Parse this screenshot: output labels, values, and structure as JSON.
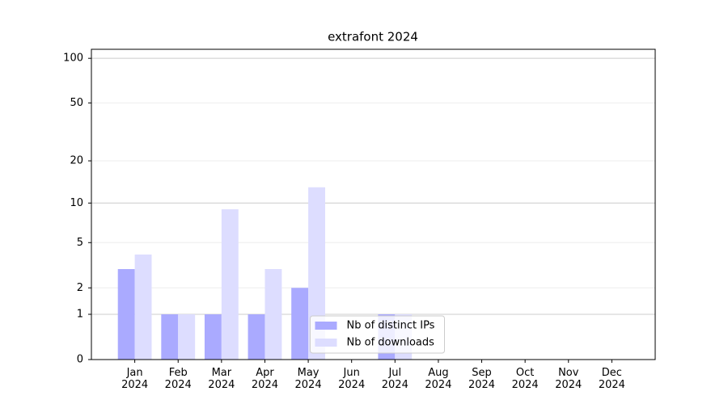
{
  "chart_data": {
    "type": "bar",
    "title": "extrafont 2024",
    "categories": [
      "Jan\n2024",
      "Feb\n2024",
      "Mar\n2024",
      "Apr\n2024",
      "May\n2024",
      "Jun\n2024",
      "Jul\n2024",
      "Aug\n2024",
      "Sep\n2024",
      "Oct\n2024",
      "Nov\n2024",
      "Dec\n2024"
    ],
    "series": [
      {
        "name": "Nb of distinct IPs",
        "color": "#aaaaff",
        "values": [
          3,
          1,
          1,
          1,
          2,
          0,
          1,
          0,
          0,
          0,
          0,
          0
        ]
      },
      {
        "name": "Nb of downloads",
        "color": "#ddddff",
        "values": [
          4,
          1,
          9,
          3,
          13,
          0,
          1,
          0,
          0,
          0,
          0,
          0
        ]
      }
    ],
    "yscale": "log1p",
    "ylim": [
      0,
      115
    ],
    "yticks": [
      0,
      1,
      2,
      5,
      10,
      20,
      50,
      100
    ],
    "grid": true,
    "legend": "lower center"
  }
}
